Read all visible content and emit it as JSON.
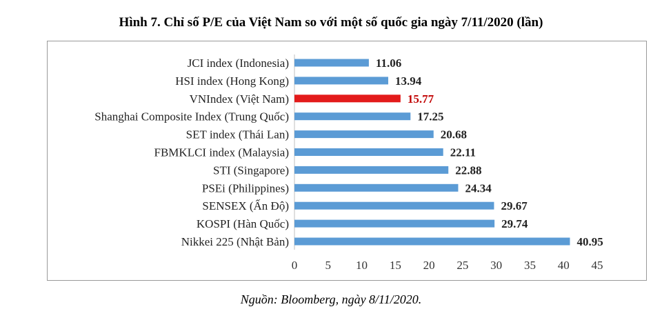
{
  "title": "Hình 7. Chỉ số P/E của Việt Nam so với một số quốc gia ngày 7/11/2020 (lần)",
  "source": "Nguồn: Bloomberg, ngày 8/11/2020.",
  "colors": {
    "bar": "#5b9bd5",
    "highlight": "#e31b1b",
    "highlight_label": "#c00000",
    "axis": "#bfbfbf"
  },
  "chart_data": {
    "type": "bar",
    "orientation": "horizontal",
    "categories": [
      "JCI index (Indonesia)",
      "HSI index (Hong Kong)",
      "VNIndex (Việt Nam)",
      "Shanghai Composite Index (Trung Quốc)",
      "SET index (Thái Lan)",
      "FBMKLCI index (Malaysia)",
      "STI (Singapore)",
      "PSEi (Philippines)",
      "SENSEX (Ấn Độ)",
      "KOSPI (Hàn Quốc)",
      "Nikkei 225 (Nhật Bản)"
    ],
    "values": [
      11.06,
      13.94,
      15.77,
      17.25,
      20.68,
      22.11,
      22.88,
      24.34,
      29.67,
      29.74,
      40.95
    ],
    "data_labels": [
      "11.06",
      "13.94",
      "15.77",
      "17.25",
      "20.68",
      "22.11",
      "22.88",
      "24.34",
      "29.67",
      "29.74",
      "40.95"
    ],
    "highlight_index": 2,
    "xlim": [
      0,
      45
    ],
    "xticks": [
      0,
      5,
      10,
      15,
      20,
      25,
      30,
      35,
      40,
      45
    ],
    "grid": false,
    "legend": "none"
  }
}
